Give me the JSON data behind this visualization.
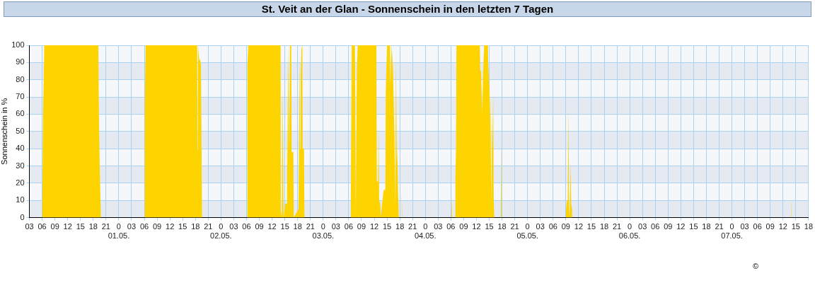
{
  "chart_data": {
    "type": "area",
    "title": "St. Veit an der Glan - Sonnenschein in den letzten 7 Tagen",
    "ylabel": "Sonnenschein in %",
    "annotations": [
      "©"
    ],
    "series": [
      {
        "color": "#fdd400",
        "x": [
          "--04-30T03:00",
          "--04-30T06:00",
          "--04-30T06:12",
          "--04-30T06:30",
          "--04-30T19:12",
          "--04-30T19:18",
          "--04-30T19:30",
          "--04-30T19:48",
          "--05-01T06:00",
          "--05-01T06:06",
          "--05-01T06:18",
          "--05-01T18:24",
          "--05-01T18:30",
          "--05-01T18:36",
          "--05-01T18:54",
          "--05-01T19:06",
          "--05-01T19:18",
          "--05-01T19:33",
          "--05-02T06:06",
          "--05-02T06:12",
          "--05-02T06:24",
          "--05-02T14:00",
          "--05-02T14:03",
          "--05-02T14:18",
          "--05-02T14:30",
          "--05-02T14:36",
          "--05-02T14:42",
          "--05-02T15:06",
          "--05-02T15:24",
          "--05-02T15:30",
          "--05-02T15:36",
          "--05-02T15:48",
          "--05-02T16:00",
          "--05-02T16:12",
          "--05-02T16:30",
          "--05-02T16:36",
          "--05-02T17:00",
          "--05-02T17:06",
          "--05-02T18:12",
          "--05-02T18:30",
          "--05-02T18:36",
          "--05-02T18:42",
          "--05-02T18:54",
          "--05-02T19:06",
          "--05-02T19:12",
          "--05-02T19:30",
          "--05-02T19:36",
          "--05-03T06:24",
          "--05-03T06:30",
          "--05-03T06:42",
          "--05-03T07:27",
          "--05-03T07:33",
          "--05-03T07:39",
          "--05-03T07:54",
          "--05-03T08:06",
          "--05-03T12:30",
          "--05-03T12:36",
          "--05-03T12:54",
          "--05-03T13:03",
          "--05-03T13:09",
          "--05-03T13:24",
          "--05-03T13:30",
          "--05-03T14:12",
          "--05-03T14:36",
          "--05-03T14:42",
          "--05-03T15:00",
          "--05-03T15:42",
          "--05-03T15:45",
          "--05-03T15:57",
          "--05-03T16:06",
          "--05-03T16:24",
          "--05-03T16:42",
          "--05-03T16:57",
          "--05-03T17:06",
          "--05-03T17:18",
          "--05-03T17:24",
          "--05-03T17:36",
          "--05-03T17:45",
          "--05-03T18:24",
          "--05-03T18:27",
          "--05-03T18:33",
          "--05-04T06:06",
          "--05-04T06:12",
          "--05-04T06:18",
          "--05-04T07:00",
          "--05-04T07:03",
          "--05-04T07:12",
          "--05-04T07:18",
          "--05-04T12:48",
          "--05-04T12:54",
          "--05-04T13:06",
          "--05-04T13:12",
          "--05-04T13:24",
          "--05-04T13:30",
          "--05-04T13:48",
          "--05-04T14:42",
          "--05-04T14:45",
          "--05-04T15:00",
          "--05-04T15:18",
          "--05-04T15:30",
          "--05-04T15:39",
          "--05-04T15:45",
          "--05-04T15:57",
          "--05-04T16:03",
          "--05-04T16:12",
          "--05-04T17:36",
          "--05-04T17:42",
          "--05-04T17:48",
          "--05-04T17:54",
          "--05-05T09:00",
          "--05-05T09:03",
          "--05-05T09:15",
          "--05-05T09:27",
          "--05-05T09:39",
          "--05-05T09:45",
          "--05-05T09:54",
          "--05-05T10:06",
          "--05-05T10:15",
          "--05-05T10:27",
          "--05-05T10:30",
          "--05-07T13:51",
          "--05-07T13:54",
          "--05-07T13:57",
          "--05-07T18:00"
        ],
        "values": [
          0,
          0,
          58,
          100,
          100,
          67,
          32,
          0,
          0,
          65,
          100,
          100,
          39,
          100,
          91,
          92,
          88,
          0,
          0,
          88,
          100,
          100,
          4,
          0,
          77,
          40,
          0,
          8,
          8,
          53,
          29,
          100,
          40,
          100,
          100,
          38,
          38,
          0,
          5,
          95,
          40,
          81,
          98,
          100,
          40,
          40,
          0,
          0,
          14,
          100,
          100,
          73,
          0,
          85,
          100,
          100,
          21,
          21,
          52,
          10,
          8,
          0,
          16,
          16,
          73,
          100,
          100,
          76,
          92,
          100,
          85,
          52,
          8,
          95,
          29,
          42,
          15,
          0,
          0,
          15,
          0,
          0,
          12,
          0,
          0,
          23,
          39,
          100,
          100,
          85,
          85,
          75,
          60,
          80,
          100,
          100,
          90,
          78,
          57,
          7,
          60,
          40,
          72,
          10,
          0,
          0,
          3,
          45,
          0,
          0,
          5,
          10,
          10,
          65,
          0,
          5,
          32,
          8,
          5,
          0,
          0,
          13,
          0,
          0
        ]
      }
    ],
    "xlim": [
      "--04-30T03:00",
      "--05-07T18:00"
    ],
    "xticks": [
      {
        "value": "--04-30T03:00",
        "label": "03"
      },
      {
        "value": "--04-30T06:00",
        "label": "06"
      },
      {
        "value": "--04-30T09:00",
        "label": "09"
      },
      {
        "value": "--04-30T12:00",
        "label": "12"
      },
      {
        "value": "--04-30T15:00",
        "label": "15"
      },
      {
        "value": "--04-30T18:00",
        "label": "18"
      },
      {
        "value": "--04-30T21:00",
        "label": "21"
      },
      {
        "value": "--05-01T00:00",
        "label": "0\n01.05."
      },
      {
        "value": "--05-01T03:00",
        "label": "03"
      },
      {
        "value": "--05-01T06:00",
        "label": "06"
      },
      {
        "value": "--05-01T09:00",
        "label": "09"
      },
      {
        "value": "--05-01T12:00",
        "label": "12"
      },
      {
        "value": "--05-01T15:00",
        "label": "15"
      },
      {
        "value": "--05-01T18:00",
        "label": "18"
      },
      {
        "value": "--05-01T21:00",
        "label": "21"
      },
      {
        "value": "--05-02T00:00",
        "label": "0\n02.05."
      },
      {
        "value": "--05-02T03:00",
        "label": "03"
      },
      {
        "value": "--05-02T06:00",
        "label": "06"
      },
      {
        "value": "--05-02T09:00",
        "label": "09"
      },
      {
        "value": "--05-02T12:00",
        "label": "12"
      },
      {
        "value": "--05-02T15:00",
        "label": "15"
      },
      {
        "value": "--05-02T18:00",
        "label": "18"
      },
      {
        "value": "--05-02T21:00",
        "label": "21"
      },
      {
        "value": "--05-03T00:00",
        "label": "0\n03.05."
      },
      {
        "value": "--05-03T03:00",
        "label": "03"
      },
      {
        "value": "--05-03T06:00",
        "label": "06"
      },
      {
        "value": "--05-03T09:00",
        "label": "09"
      },
      {
        "value": "--05-03T12:00",
        "label": "12"
      },
      {
        "value": "--05-03T15:00",
        "label": "15"
      },
      {
        "value": "--05-03T18:00",
        "label": "18"
      },
      {
        "value": "--05-03T21:00",
        "label": "21"
      },
      {
        "value": "--05-04T00:00",
        "label": "0\n04.05."
      },
      {
        "value": "--05-04T03:00",
        "label": "03"
      },
      {
        "value": "--05-04T06:00",
        "label": "06"
      },
      {
        "value": "--05-04T09:00",
        "label": "09"
      },
      {
        "value": "--05-04T12:00",
        "label": "12"
      },
      {
        "value": "--05-04T15:00",
        "label": "15"
      },
      {
        "value": "--05-04T18:00",
        "label": "18"
      },
      {
        "value": "--05-04T21:00",
        "label": "21"
      },
      {
        "value": "--05-05T00:00",
        "label": "0\n05.05."
      },
      {
        "value": "--05-05T03:00",
        "label": "03"
      },
      {
        "value": "--05-05T06:00",
        "label": "06"
      },
      {
        "value": "--05-05T09:00",
        "label": "09"
      },
      {
        "value": "--05-05T12:00",
        "label": "12"
      },
      {
        "value": "--05-05T15:00",
        "label": "15"
      },
      {
        "value": "--05-05T18:00",
        "label": "18"
      },
      {
        "value": "--05-05T21:00",
        "label": "21"
      },
      {
        "value": "--05-06T00:00",
        "label": "0\n06.05."
      },
      {
        "value": "--05-06T03:00",
        "label": "03"
      },
      {
        "value": "--05-06T06:00",
        "label": "06"
      },
      {
        "value": "--05-06T09:00",
        "label": "09"
      },
      {
        "value": "--05-06T12:00",
        "label": "12"
      },
      {
        "value": "--05-06T15:00",
        "label": "15"
      },
      {
        "value": "--05-06T18:00",
        "label": "18"
      },
      {
        "value": "--05-06T21:00",
        "label": "21"
      },
      {
        "value": "--05-07T00:00",
        "label": "0\n07.05."
      },
      {
        "value": "--05-07T03:00",
        "label": "03"
      },
      {
        "value": "--05-07T06:00",
        "label": "06"
      },
      {
        "value": "--05-07T09:00",
        "label": "09"
      },
      {
        "value": "--05-07T12:00",
        "label": "12"
      },
      {
        "value": "--05-07T15:00",
        "label": "15"
      },
      {
        "value": "--05-07T18:00",
        "label": "18"
      }
    ],
    "ylim": [
      0,
      100
    ],
    "yticks": [
      0,
      10,
      20,
      30,
      40,
      50,
      60,
      70,
      80,
      90,
      100
    ],
    "grid": true
  }
}
